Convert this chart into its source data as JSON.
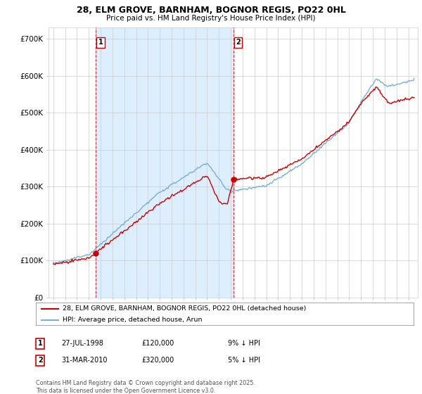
{
  "title": "28, ELM GROVE, BARNHAM, BOGNOR REGIS, PO22 0HL",
  "subtitle": "Price paid vs. HM Land Registry's House Price Index (HPI)",
  "legend_line1": "28, ELM GROVE, BARNHAM, BOGNOR REGIS, PO22 0HL (detached house)",
  "legend_line2": "HPI: Average price, detached house, Arun",
  "annotation1_label": "1",
  "annotation1_date": "27-JUL-1998",
  "annotation1_price": "£120,000",
  "annotation1_hpi": "9% ↓ HPI",
  "annotation2_label": "2",
  "annotation2_date": "31-MAR-2010",
  "annotation2_price": "£320,000",
  "annotation2_hpi": "5% ↓ HPI",
  "footer": "Contains HM Land Registry data © Crown copyright and database right 2025.\nThis data is licensed under the Open Government Licence v3.0.",
  "ylim": [
    0,
    730000
  ],
  "yticks": [
    0,
    100000,
    200000,
    300000,
    400000,
    500000,
    600000,
    700000
  ],
  "red_color": "#cc0000",
  "blue_color": "#7ab0d4",
  "fill_color": "#ddeeff",
  "dashed_color": "#cc0000",
  "background_color": "#ffffff",
  "grid_color": "#cccccc",
  "sale1_year": 1998.57,
  "sale2_year": 2010.25,
  "sale1_price": 120000,
  "sale2_price": 320000
}
